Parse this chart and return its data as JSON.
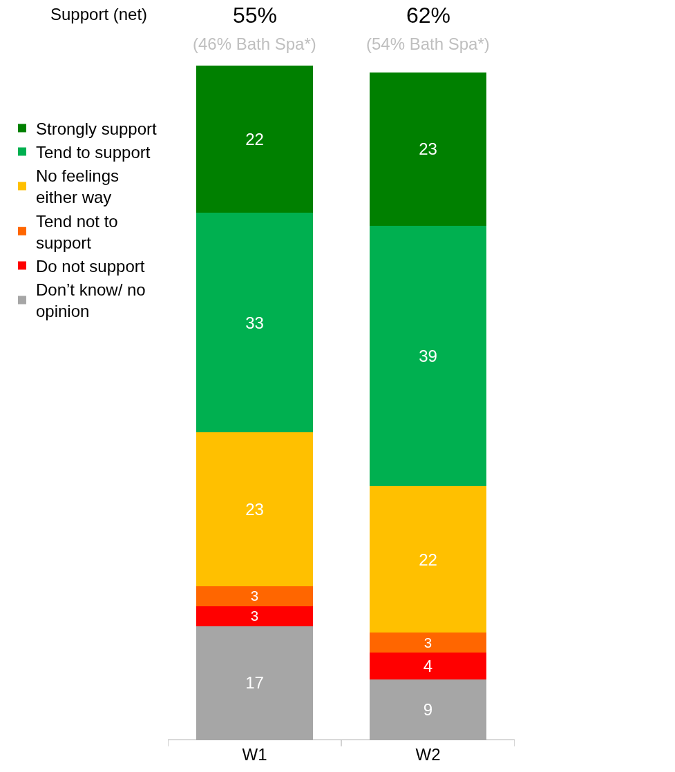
{
  "chart_data": {
    "type": "bar",
    "stacked": true,
    "categories": [
      "W1",
      "W2"
    ],
    "series": [
      {
        "name": "Don’t know/ no opinion",
        "color": "#a6a6a6",
        "values": [
          17,
          9
        ]
      },
      {
        "name": "Do not support",
        "color": "#ff0000",
        "values": [
          3,
          4
        ]
      },
      {
        "name": "Tend not to support",
        "color": "#ff6600",
        "values": [
          3,
          3
        ]
      },
      {
        "name": "No feelings either way",
        "color": "#ffc000",
        "values": [
          23,
          22
        ]
      },
      {
        "name": "Tend to support",
        "color": "#00b050",
        "values": [
          33,
          39
        ]
      },
      {
        "name": "Strongly support",
        "color": "#008000",
        "values": [
          22,
          23
        ]
      }
    ],
    "data_labels": true,
    "legend": "left",
    "annotations": [
      "Support (net)",
      "55%",
      "(46% Bath Spa*)",
      "62%",
      "(54% Bath Spa*)"
    ]
  }
}
